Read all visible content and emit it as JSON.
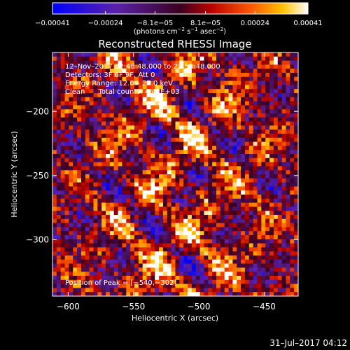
{
  "chart_data": {
    "type": "heatmap",
    "title": "Reconstructed RHESSI Image",
    "xlabel": "Heliocentric X (arcsec)",
    "ylabel": "Heliocentric Y (arcsec)",
    "xlim": [
      -612,
      -424
    ],
    "ylim": [
      -344,
      -154
    ],
    "x_ticks": [
      -600,
      -550,
      -500,
      -450
    ],
    "x_tick_labels": [
      "−600",
      "−550",
      "−500",
      "−450"
    ],
    "y_ticks": [
      -200,
      -250,
      -300
    ],
    "y_tick_labels": [
      "−200",
      "−250",
      "−300"
    ],
    "colorbar": {
      "min": -0.00041,
      "max": 0.00041,
      "ticks": [
        -0.00041,
        -0.00024,
        -8.1e-05,
        8.1e-05,
        0.00024,
        0.00041
      ],
      "tick_labels": [
        "−0.00041",
        "−0.00024",
        "−8.1e−05",
        "8.1e−05",
        "0.00024",
        "0.00041"
      ],
      "unit_label_parts": [
        "(photons cm",
        "−2",
        " s",
        "−1",
        " asec",
        "−2",
        ")"
      ],
      "colormap": "blue-purple-red-orange-yellow-white"
    },
    "info_lines": [
      "12–Nov–2017 22:48:48.000 to 22:58:48.000",
      "Detectors: 3F 6F 9F, Att 0",
      "Energy Range: 12.0 – 25.0 keV",
      "Clean      Total counts: 4.43E+03"
    ],
    "peak_label": "Position of Peak = [−540,−302]",
    "timestamp": "31–Jul–2017 04:12",
    "grid": false
  }
}
